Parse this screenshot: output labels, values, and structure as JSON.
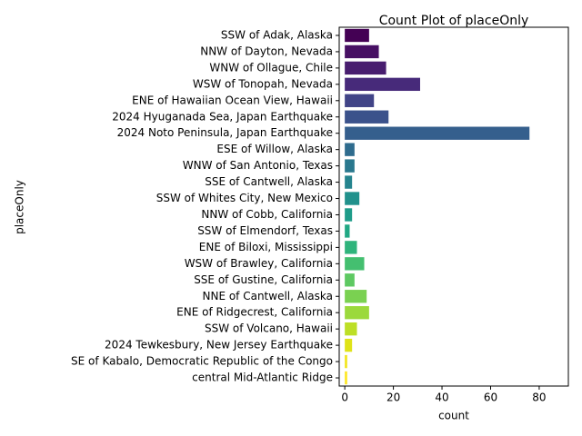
{
  "chart_data": {
    "type": "barh",
    "title": "Count Plot of placeOnly",
    "xlabel": "count",
    "ylabel": "placeOnly",
    "categories": [
      "SSW of Adak, Alaska",
      "NNW of Dayton, Nevada",
      "WNW of Ollague, Chile",
      "WSW of Tonopah, Nevada",
      "ENE of Hawaiian Ocean View, Hawaii",
      "2024 Hyuganada Sea, Japan Earthquake",
      "2024 Noto Peninsula, Japan Earthquake",
      "ESE of Willow, Alaska",
      "WNW of San Antonio, Texas",
      "SSE of Cantwell, Alaska",
      "SSW of Whites City, New Mexico",
      "NNW of Cobb, California",
      "SSW of Elmendorf, Texas",
      "ENE of Biloxi, Mississippi",
      "WSW of Brawley, California",
      "SSE of Gustine, California",
      "NNE of Cantwell, Alaska",
      "ENE of Ridgecrest, California",
      "SSW of Volcano, Hawaii",
      "2024 Tewkesbury, New Jersey Earthquake",
      "SE of Kabalo, Democratic Republic of the Congo",
      "central Mid-Atlantic Ridge"
    ],
    "values": [
      10,
      14,
      17,
      31,
      12,
      18,
      76,
      4,
      4,
      3,
      6,
      3,
      2,
      5,
      8,
      4,
      9,
      10,
      5,
      3,
      1,
      1
    ],
    "colors": [
      "#440154",
      "#471063",
      "#481d6f",
      "#472a7a",
      "#414487",
      "#3b528b",
      "#355f8d",
      "#2f6c8e",
      "#2a788e",
      "#25848e",
      "#21918c",
      "#1e9c89",
      "#22a884",
      "#2fb47c",
      "#44bf70",
      "#5ec962",
      "#7ad151",
      "#9bd93c",
      "#bddf26",
      "#dfe318",
      "#f1e51d",
      "#fde725"
    ],
    "xlim": [
      -2.3,
      92
    ],
    "xticks": [
      0,
      20,
      40,
      60,
      80
    ]
  }
}
